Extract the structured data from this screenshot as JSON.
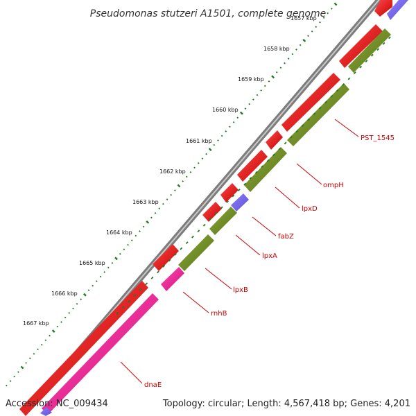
{
  "title": "Pseudomonas stutzeri A1501, complete genome",
  "footer": {
    "accession": "Accession: NC_009434",
    "summary": "Topology: circular; Length: 4,567,418 bp; Genes: 4,201"
  },
  "colors": {
    "background": "#ffffff",
    "backbone": "#7a7a7a",
    "forward_feature": "#e00000",
    "reverse_feature": "#6e8b23",
    "accent_pink": "#ff1493",
    "accent_purple": "#7b68ee",
    "tick_green": "#1f7a1f",
    "label_red": "#cc0000"
  },
  "ruler": {
    "labels": [
      "1657 kbp",
      "1658 kbp",
      "1659 kbp",
      "1660 kbp",
      "1661 kbp",
      "1662 kbp",
      "1663 kbp",
      "1664 kbp",
      "1665 kbp",
      "1666 kbp",
      "1667 kbp"
    ]
  },
  "gene_labels": [
    "PST_1545",
    "ompH",
    "lpxD",
    "fabZ",
    "lpxA",
    "lpxB",
    "rnhB",
    "dnaE"
  ]
}
